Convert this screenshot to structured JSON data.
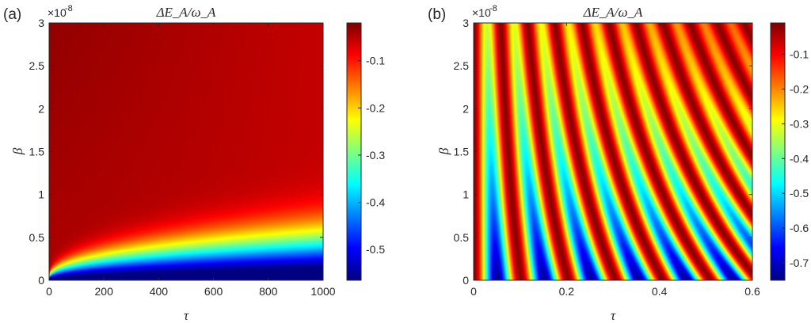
{
  "chart_data": [
    {
      "type": "heatmap",
      "panel_label": "(a)",
      "title": "ΔE_A/ω_A",
      "xlabel": "τ",
      "ylabel": "β",
      "y_exponent_label": "×10",
      "y_exponent": "-8",
      "xlim": [
        0,
        1000
      ],
      "ylim": [
        0,
        3e-08
      ],
      "x_ticks": [
        0,
        200,
        400,
        600,
        800,
        1000
      ],
      "x_tick_labels": [
        "0",
        "200",
        "400",
        "600",
        "800",
        "1000"
      ],
      "y_ticks": [
        0,
        0.5,
        1,
        1.5,
        2,
        2.5,
        3
      ],
      "y_tick_labels": [
        "0",
        "0.5",
        "1",
        "1.5",
        "2",
        "2.5",
        "3"
      ],
      "colormap": "jet",
      "clim": [
        -0.565,
        -0.02
      ],
      "colorbar_ticks": [
        -0.5,
        -0.4,
        -0.3,
        -0.2,
        -0.1
      ],
      "colorbar_tick_labels": [
        "-0.5",
        "-0.4",
        "-0.3",
        "-0.2",
        "-0.1"
      ]
    },
    {
      "type": "heatmap",
      "panel_label": "(b)",
      "title": "ΔE_A/ω_A",
      "xlabel": "τ",
      "ylabel": "β",
      "y_exponent_label": "×10",
      "y_exponent": "-8",
      "xlim": [
        0,
        0.6
      ],
      "ylim": [
        0,
        3e-08
      ],
      "x_ticks": [
        0,
        0.2,
        0.4,
        0.6
      ],
      "x_tick_labels": [
        "0",
        "0.2",
        "0.4",
        "0.6"
      ],
      "y_ticks": [
        0,
        0.5,
        1,
        1.5,
        2,
        2.5,
        3
      ],
      "y_tick_labels": [
        "0",
        "0.5",
        "1",
        "1.5",
        "2",
        "2.5",
        "3"
      ],
      "colormap": "jet",
      "clim": [
        -0.75,
        -0.01
      ],
      "colorbar_ticks": [
        -0.7,
        -0.6,
        -0.5,
        -0.4,
        -0.3,
        -0.2,
        -0.1
      ],
      "colorbar_tick_labels": [
        "-0.7",
        "-0.6",
        "-0.5",
        "-0.4",
        "-0.3",
        "-0.2",
        "-0.1"
      ]
    }
  ]
}
